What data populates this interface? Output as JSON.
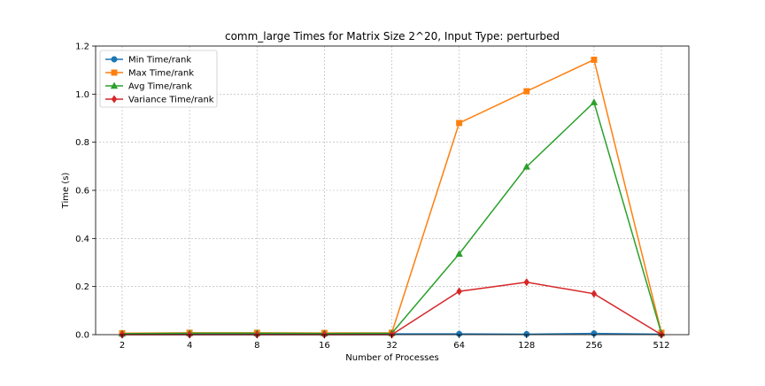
{
  "chart_data": {
    "type": "line",
    "title": "comm_large Times for Matrix Size 2^20, Input Type: perturbed",
    "xlabel": "Number of Processes",
    "ylabel": "Time (s)",
    "categories": [
      "2",
      "4",
      "8",
      "16",
      "32",
      "64",
      "128",
      "256",
      "512"
    ],
    "ylim": [
      0.0,
      1.2
    ],
    "yticks": [
      "0.0",
      "0.2",
      "0.4",
      "0.6",
      "0.8",
      "1.0",
      "1.2"
    ],
    "ytick_values": [
      0.0,
      0.2,
      0.4,
      0.6,
      0.8,
      1.0,
      1.2
    ],
    "grid": true,
    "legend_position": "top-left",
    "series": [
      {
        "name": "Min Time/rank",
        "color": "#1f77b4",
        "marker": "circle",
        "values": [
          0.001,
          0.002,
          0.002,
          0.002,
          0.003,
          0.003,
          0.002,
          0.005,
          0.002
        ]
      },
      {
        "name": "Max Time/rank",
        "color": "#ff7f0e",
        "marker": "square",
        "values": [
          0.006,
          0.008,
          0.008,
          0.007,
          0.008,
          0.88,
          1.012,
          1.143,
          0.008
        ]
      },
      {
        "name": "Avg Time/rank",
        "color": "#2ca02c",
        "marker": "triangle",
        "values": [
          0.004,
          0.006,
          0.006,
          0.005,
          0.006,
          0.336,
          0.698,
          0.966,
          0.005
        ]
      },
      {
        "name": "Variance Time/rank",
        "color": "#d62728",
        "marker": "diamond",
        "values": [
          0.0,
          0.0,
          0.0,
          0.0,
          0.0,
          0.18,
          0.218,
          0.17,
          0.0
        ]
      }
    ]
  }
}
